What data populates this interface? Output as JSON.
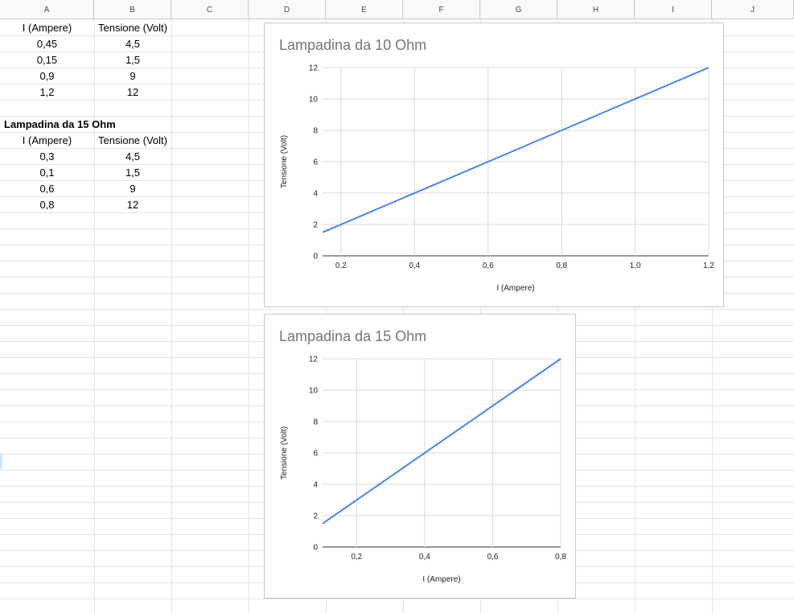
{
  "sheet": {
    "columns": [
      "A",
      "B",
      "C",
      "D",
      "E",
      "F",
      "G",
      "H",
      "I",
      "J"
    ]
  },
  "table1": {
    "header": [
      "I (Ampere)",
      "Tensione (Volt)"
    ],
    "rows": [
      [
        "0,45",
        "4,5"
      ],
      [
        "0,15",
        "1,5"
      ],
      [
        "0,9",
        "9"
      ],
      [
        "1,2",
        "12"
      ]
    ]
  },
  "table2": {
    "title": "Lampadina da 15 Ohm",
    "header": [
      "I (Ampere)",
      "Tensione (Volt)"
    ],
    "rows": [
      [
        "0,3",
        "4,5"
      ],
      [
        "0,1",
        "1,5"
      ],
      [
        "0,6",
        "9"
      ],
      [
        "0,8",
        "12"
      ]
    ]
  },
  "colors": {
    "series": "#4a86e8",
    "title": "#757575",
    "grid": "#d9d9d9"
  },
  "chart_data": [
    {
      "type": "line",
      "title": "Lampadina da 10 Ohm",
      "xlabel": "I (Ampere)",
      "ylabel": "Tensione (Volt)",
      "x": [
        0.15,
        0.45,
        0.9,
        1.2
      ],
      "series": [
        {
          "values": [
            1.5,
            4.5,
            9,
            12
          ]
        }
      ],
      "xlim": [
        0.15,
        1.2
      ],
      "ylim": [
        0,
        12
      ],
      "xticks": [
        0.2,
        0.4,
        0.6,
        0.8,
        1.0,
        1.2
      ],
      "xtick_labels": [
        "0,2",
        "0,4",
        "0,6",
        "0,8",
        "1,0",
        "1,2"
      ],
      "yticks": [
        0,
        2,
        4,
        6,
        8,
        10,
        12
      ],
      "ytick_labels": [
        "0",
        "2",
        "4",
        "6",
        "8",
        "10",
        "12"
      ],
      "grid": true,
      "legend": "none"
    },
    {
      "type": "line",
      "title": "Lampadina da 15 Ohm",
      "xlabel": "I (Ampere)",
      "ylabel": "Tensione (Volt)",
      "x": [
        0.1,
        0.3,
        0.6,
        0.8
      ],
      "series": [
        {
          "values": [
            1.5,
            4.5,
            9,
            12
          ]
        }
      ],
      "xlim": [
        0.1,
        0.8
      ],
      "ylim": [
        0,
        12
      ],
      "xticks": [
        0.2,
        0.4,
        0.6,
        0.8
      ],
      "xtick_labels": [
        "0,2",
        "0,4",
        "0,6",
        "0,8"
      ],
      "yticks": [
        0,
        2,
        4,
        6,
        8,
        10,
        12
      ],
      "ytick_labels": [
        "0",
        "2",
        "4",
        "6",
        "8",
        "10",
        "12"
      ],
      "grid": true,
      "legend": "none"
    }
  ]
}
